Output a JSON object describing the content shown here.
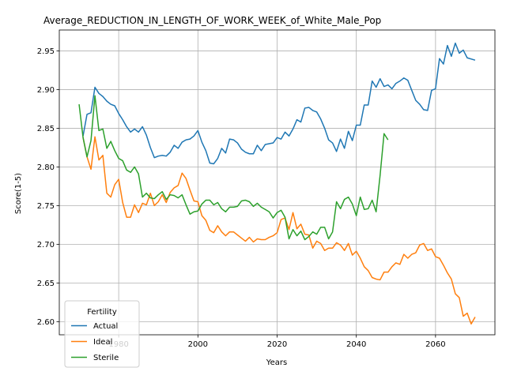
{
  "chart_data": {
    "type": "line",
    "title": "Average_REDUCTION_IN_LENGTH_OF_WORK_WEEK_of_White_Male_Pop",
    "xlabel": "Years",
    "ylabel": "Score(1-5)",
    "xlim": [
      1965,
      2075
    ],
    "ylim": [
      2.583,
      2.977
    ],
    "xticks": [
      1980,
      2000,
      2020,
      2040,
      2060
    ],
    "yticks": [
      2.6,
      2.65,
      2.7,
      2.75,
      2.8,
      2.85,
      2.9,
      2.95
    ],
    "xtick_labels": [
      "1980",
      "2000",
      "2020",
      "2040",
      "2060"
    ],
    "ytick_labels": [
      "2.60",
      "2.65",
      "2.70",
      "2.75",
      "2.80",
      "2.85",
      "2.90",
      "2.95"
    ],
    "grid": true,
    "legend": {
      "title": "Fertility",
      "placement": "lower-left"
    },
    "series": [
      {
        "name": "Actual",
        "color": "#1f77b4",
        "points": [
          [
            1971,
            2.84
          ],
          [
            1972,
            2.868
          ],
          [
            1973,
            2.87
          ],
          [
            1974,
            2.903
          ],
          [
            1975,
            2.895
          ],
          [
            1976,
            2.891
          ],
          [
            1977,
            2.885
          ],
          [
            1978,
            2.881
          ],
          [
            1979,
            2.879
          ],
          [
            1980,
            2.869
          ],
          [
            1981,
            2.861
          ],
          [
            1982,
            2.852
          ],
          [
            1983,
            2.845
          ],
          [
            1984,
            2.849
          ],
          [
            1985,
            2.845
          ],
          [
            1986,
            2.852
          ],
          [
            1987,
            2.841
          ],
          [
            1988,
            2.825
          ],
          [
            1989,
            2.812
          ],
          [
            1990,
            2.814
          ],
          [
            1991,
            2.815
          ],
          [
            1992,
            2.814
          ],
          [
            1993,
            2.819
          ],
          [
            1994,
            2.828
          ],
          [
            1995,
            2.824
          ],
          [
            1996,
            2.832
          ],
          [
            1997,
            2.835
          ],
          [
            1998,
            2.836
          ],
          [
            1999,
            2.84
          ],
          [
            2000,
            2.847
          ],
          [
            2001,
            2.832
          ],
          [
            2002,
            2.821
          ],
          [
            2003,
            2.805
          ],
          [
            2004,
            2.804
          ],
          [
            2005,
            2.811
          ],
          [
            2006,
            2.824
          ],
          [
            2007,
            2.818
          ],
          [
            2008,
            2.836
          ],
          [
            2009,
            2.835
          ],
          [
            2010,
            2.831
          ],
          [
            2011,
            2.823
          ],
          [
            2012,
            2.819
          ],
          [
            2013,
            2.817
          ],
          [
            2014,
            2.817
          ],
          [
            2015,
            2.828
          ],
          [
            2016,
            2.821
          ],
          [
            2017,
            2.829
          ],
          [
            2018,
            2.83
          ],
          [
            2019,
            2.831
          ],
          [
            2020,
            2.838
          ],
          [
            2021,
            2.836
          ],
          [
            2022,
            2.845
          ],
          [
            2023,
            2.84
          ],
          [
            2024,
            2.849
          ],
          [
            2025,
            2.861
          ],
          [
            2026,
            2.858
          ],
          [
            2027,
            2.876
          ],
          [
            2028,
            2.877
          ],
          [
            2029,
            2.873
          ],
          [
            2030,
            2.871
          ],
          [
            2031,
            2.862
          ],
          [
            2032,
            2.85
          ],
          [
            2033,
            2.835
          ],
          [
            2034,
            2.831
          ],
          [
            2035,
            2.82
          ],
          [
            2036,
            2.836
          ],
          [
            2037,
            2.824
          ],
          [
            2038,
            2.846
          ],
          [
            2039,
            2.834
          ],
          [
            2040,
            2.854
          ],
          [
            2041,
            2.854
          ],
          [
            2042,
            2.88
          ],
          [
            2043,
            2.88
          ],
          [
            2044,
            2.911
          ],
          [
            2045,
            2.903
          ],
          [
            2046,
            2.914
          ],
          [
            2047,
            2.904
          ],
          [
            2048,
            2.906
          ],
          [
            2049,
            2.901
          ],
          [
            2050,
            2.908
          ],
          [
            2051,
            2.911
          ],
          [
            2052,
            2.915
          ],
          [
            2053,
            2.912
          ],
          [
            2054,
            2.899
          ],
          [
            2055,
            2.886
          ],
          [
            2056,
            2.881
          ],
          [
            2057,
            2.874
          ],
          [
            2058,
            2.873
          ],
          [
            2059,
            2.899
          ],
          [
            2060,
            2.901
          ],
          [
            2061,
            2.94
          ],
          [
            2062,
            2.933
          ],
          [
            2063,
            2.957
          ],
          [
            2064,
            2.943
          ],
          [
            2065,
            2.96
          ],
          [
            2066,
            2.947
          ],
          [
            2067,
            2.951
          ],
          [
            2068,
            2.941
          ],
          [
            2070,
            2.938
          ]
        ]
      },
      {
        "name": "Ideal",
        "color": "#ff7f0e",
        "points": [
          [
            1971,
            2.838
          ],
          [
            1972,
            2.813
          ],
          [
            1973,
            2.797
          ],
          [
            1974,
            2.839
          ],
          [
            1975,
            2.809
          ],
          [
            1976,
            2.815
          ],
          [
            1977,
            2.766
          ],
          [
            1978,
            2.761
          ],
          [
            1979,
            2.777
          ],
          [
            1980,
            2.784
          ],
          [
            1981,
            2.754
          ],
          [
            1982,
            2.735
          ],
          [
            1983,
            2.735
          ],
          [
            1984,
            2.751
          ],
          [
            1985,
            2.741
          ],
          [
            1986,
            2.753
          ],
          [
            1987,
            2.751
          ],
          [
            1988,
            2.766
          ],
          [
            1989,
            2.75
          ],
          [
            1990,
            2.755
          ],
          [
            1991,
            2.764
          ],
          [
            1992,
            2.754
          ],
          [
            1993,
            2.767
          ],
          [
            1994,
            2.773
          ],
          [
            1995,
            2.776
          ],
          [
            1996,
            2.792
          ],
          [
            1997,
            2.785
          ],
          [
            1998,
            2.77
          ],
          [
            1999,
            2.756
          ],
          [
            2000,
            2.755
          ],
          [
            2001,
            2.737
          ],
          [
            2002,
            2.731
          ],
          [
            2003,
            2.718
          ],
          [
            2004,
            2.715
          ],
          [
            2005,
            2.724
          ],
          [
            2006,
            2.716
          ],
          [
            2007,
            2.711
          ],
          [
            2008,
            2.716
          ],
          [
            2009,
            2.716
          ],
          [
            2010,
            2.712
          ],
          [
            2011,
            2.708
          ],
          [
            2012,
            2.704
          ],
          [
            2013,
            2.709
          ],
          [
            2014,
            2.703
          ],
          [
            2015,
            2.707
          ],
          [
            2016,
            2.706
          ],
          [
            2017,
            2.706
          ],
          [
            2018,
            2.709
          ],
          [
            2019,
            2.711
          ],
          [
            2020,
            2.715
          ],
          [
            2021,
            2.732
          ],
          [
            2022,
            2.734
          ],
          [
            2023,
            2.719
          ],
          [
            2024,
            2.741
          ],
          [
            2025,
            2.72
          ],
          [
            2026,
            2.726
          ],
          [
            2027,
            2.713
          ],
          [
            2028,
            2.712
          ],
          [
            2029,
            2.695
          ],
          [
            2030,
            2.704
          ],
          [
            2031,
            2.701
          ],
          [
            2032,
            2.692
          ],
          [
            2033,
            2.695
          ],
          [
            2034,
            2.695
          ],
          [
            2035,
            2.702
          ],
          [
            2036,
            2.699
          ],
          [
            2037,
            2.692
          ],
          [
            2038,
            2.701
          ],
          [
            2039,
            2.686
          ],
          [
            2040,
            2.691
          ],
          [
            2041,
            2.682
          ],
          [
            2042,
            2.671
          ],
          [
            2043,
            2.666
          ],
          [
            2044,
            2.657
          ],
          [
            2045,
            2.655
          ],
          [
            2046,
            2.654
          ],
          [
            2047,
            2.664
          ],
          [
            2048,
            2.664
          ],
          [
            2049,
            2.671
          ],
          [
            2050,
            2.676
          ],
          [
            2051,
            2.674
          ],
          [
            2052,
            2.687
          ],
          [
            2053,
            2.682
          ],
          [
            2054,
            2.687
          ],
          [
            2055,
            2.689
          ],
          [
            2056,
            2.699
          ],
          [
            2057,
            2.701
          ],
          [
            2058,
            2.692
          ],
          [
            2059,
            2.694
          ],
          [
            2060,
            2.684
          ],
          [
            2061,
            2.682
          ],
          [
            2062,
            2.673
          ],
          [
            2063,
            2.663
          ],
          [
            2064,
            2.655
          ],
          [
            2065,
            2.636
          ],
          [
            2066,
            2.631
          ],
          [
            2067,
            2.607
          ],
          [
            2068,
            2.611
          ],
          [
            2069,
            2.597
          ],
          [
            2070,
            2.606
          ]
        ]
      },
      {
        "name": "Sterile",
        "color": "#2ca02c",
        "points": [
          [
            1970,
            2.881
          ],
          [
            1971,
            2.838
          ],
          [
            1972,
            2.813
          ],
          [
            1973,
            2.834
          ],
          [
            1974,
            2.892
          ],
          [
            1975,
            2.847
          ],
          [
            1976,
            2.849
          ],
          [
            1977,
            2.824
          ],
          [
            1978,
            2.833
          ],
          [
            1979,
            2.821
          ],
          [
            1980,
            2.811
          ],
          [
            1981,
            2.808
          ],
          [
            1982,
            2.796
          ],
          [
            1983,
            2.793
          ],
          [
            1984,
            2.8
          ],
          [
            1985,
            2.791
          ],
          [
            1986,
            2.761
          ],
          [
            1987,
            2.766
          ],
          [
            1988,
            2.76
          ],
          [
            1989,
            2.759
          ],
          [
            1990,
            2.764
          ],
          [
            1991,
            2.768
          ],
          [
            1992,
            2.758
          ],
          [
            1993,
            2.764
          ],
          [
            1994,
            2.763
          ],
          [
            1995,
            2.76
          ],
          [
            1996,
            2.764
          ],
          [
            1997,
            2.751
          ],
          [
            1998,
            2.739
          ],
          [
            1999,
            2.742
          ],
          [
            2000,
            2.743
          ],
          [
            2001,
            2.752
          ],
          [
            2002,
            2.757
          ],
          [
            2003,
            2.757
          ],
          [
            2004,
            2.751
          ],
          [
            2005,
            2.754
          ],
          [
            2006,
            2.746
          ],
          [
            2007,
            2.742
          ],
          [
            2008,
            2.748
          ],
          [
            2009,
            2.748
          ],
          [
            2010,
            2.749
          ],
          [
            2011,
            2.756
          ],
          [
            2012,
            2.757
          ],
          [
            2013,
            2.755
          ],
          [
            2014,
            2.749
          ],
          [
            2015,
            2.753
          ],
          [
            2016,
            2.748
          ],
          [
            2017,
            2.745
          ],
          [
            2018,
            2.742
          ],
          [
            2019,
            2.734
          ],
          [
            2020,
            2.741
          ],
          [
            2021,
            2.744
          ],
          [
            2022,
            2.735
          ],
          [
            2023,
            2.707
          ],
          [
            2024,
            2.719
          ],
          [
            2025,
            2.711
          ],
          [
            2026,
            2.717
          ],
          [
            2027,
            2.706
          ],
          [
            2028,
            2.71
          ],
          [
            2029,
            2.716
          ],
          [
            2030,
            2.713
          ],
          [
            2031,
            2.722
          ],
          [
            2032,
            2.722
          ],
          [
            2033,
            2.707
          ],
          [
            2034,
            2.716
          ],
          [
            2035,
            2.755
          ],
          [
            2036,
            2.746
          ],
          [
            2037,
            2.758
          ],
          [
            2038,
            2.761
          ],
          [
            2039,
            2.752
          ],
          [
            2040,
            2.737
          ],
          [
            2041,
            2.761
          ],
          [
            2042,
            2.745
          ],
          [
            2043,
            2.746
          ],
          [
            2044,
            2.757
          ],
          [
            2045,
            2.742
          ],
          [
            2046,
            2.789
          ],
          [
            2047,
            2.843
          ],
          [
            2048,
            2.835
          ]
        ]
      }
    ]
  }
}
